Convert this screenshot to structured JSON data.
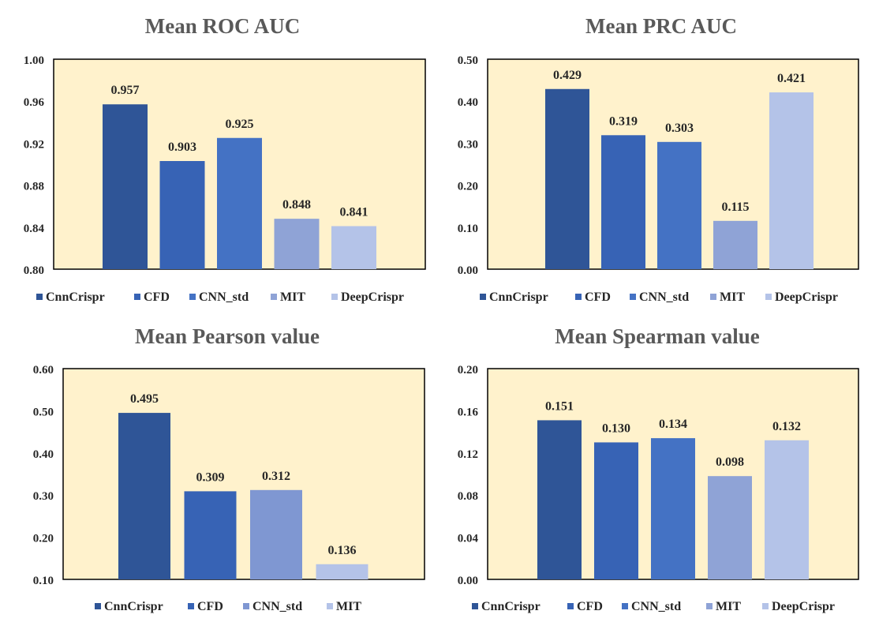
{
  "chart_data": [
    {
      "type": "bar",
      "title": "Mean ROC AUC",
      "categories": [
        "CnnCrispr",
        "CFD",
        "CNN_std",
        "MIT",
        "DeepCrispr"
      ],
      "values": [
        0.957,
        0.903,
        0.925,
        0.848,
        0.841
      ],
      "value_labels": [
        "0.957",
        "0.903",
        "0.925",
        "0.848",
        "0.841"
      ],
      "ylim": [
        0.8,
        1.0
      ],
      "yticks": [
        0.8,
        0.84,
        0.88,
        0.92,
        0.96,
        1.0
      ],
      "ytick_labels": [
        "0.80",
        "0.84",
        "0.88",
        "0.92",
        "0.96",
        "1.00"
      ],
      "legend": [
        "CnnCrispr",
        "CFD",
        "CNN_std",
        "MIT",
        "DeepCrispr"
      ],
      "colors": [
        "#2F5597",
        "#3763B5",
        "#4472C4",
        "#8FA3D6",
        "#B4C3E8"
      ],
      "legend_position": "bottom",
      "grid": false
    },
    {
      "type": "bar",
      "title": "Mean PRC AUC",
      "categories": [
        "CnnCrispr",
        "CFD",
        "CNN_std",
        "MIT",
        "DeepCrispr"
      ],
      "values": [
        0.429,
        0.319,
        0.303,
        0.115,
        0.421
      ],
      "value_labels": [
        "0.429",
        "0.319",
        "0.303",
        "0.115",
        "0.421"
      ],
      "ylim": [
        0.0,
        0.5
      ],
      "yticks": [
        0.0,
        0.1,
        0.2,
        0.3,
        0.4,
        0.5
      ],
      "ytick_labels": [
        "0.00",
        "0.10",
        "0.20",
        "0.30",
        "0.40",
        "0.50"
      ],
      "legend": [
        "CnnCrispr",
        "CFD",
        "CNN_std",
        "MIT",
        "DeepCrispr"
      ],
      "colors": [
        "#2F5597",
        "#3763B5",
        "#4472C4",
        "#8FA3D6",
        "#B4C3E8"
      ],
      "legend_position": "bottom",
      "grid": false
    },
    {
      "type": "bar",
      "title": "Mean Pearson value",
      "categories": [
        "CnnCrispr",
        "CFD",
        "CNN_std",
        "MIT"
      ],
      "values": [
        0.495,
        0.309,
        0.312,
        0.136
      ],
      "value_labels": [
        "0.495",
        "0.309",
        "0.312",
        "0.136"
      ],
      "ylim": [
        0.1,
        0.6
      ],
      "yticks": [
        0.1,
        0.2,
        0.3,
        0.4,
        0.5,
        0.6
      ],
      "ytick_labels": [
        "0.10",
        "0.20",
        "0.30",
        "0.40",
        "0.50",
        "0.60"
      ],
      "legend": [
        "CnnCrispr",
        "CFD",
        "CNN_std",
        "MIT"
      ],
      "colors": [
        "#2F5597",
        "#3763B5",
        "#7F97D2",
        "#B4C3E8"
      ],
      "legend_position": "bottom",
      "grid": false
    },
    {
      "type": "bar",
      "title": "Mean Spearman value",
      "categories": [
        "CnnCrispr",
        "CFD",
        "CNN_std",
        "MIT",
        "DeepCrispr"
      ],
      "values": [
        0.151,
        0.13,
        0.134,
        0.098,
        0.132
      ],
      "value_labels": [
        "0.151",
        "0.130",
        "0.134",
        "0.098",
        "0.132"
      ],
      "ylim": [
        0.0,
        0.2
      ],
      "yticks": [
        0.0,
        0.04,
        0.08,
        0.12,
        0.16,
        0.2
      ],
      "ytick_labels": [
        "0.00",
        "0.04",
        "0.08",
        "0.12",
        "0.16",
        "0.20"
      ],
      "legend": [
        "CnnCrispr",
        "CFD",
        "CNN_std",
        "MIT",
        "DeepCrispr"
      ],
      "colors": [
        "#2F5597",
        "#3763B5",
        "#4472C4",
        "#8FA3D6",
        "#B4C3E8"
      ],
      "legend_position": "bottom",
      "grid": false
    }
  ],
  "style": {
    "plot_background": "#FFF2CC",
    "axis_color": "#000000",
    "title_color": "#595959",
    "text_color": "#262626"
  }
}
